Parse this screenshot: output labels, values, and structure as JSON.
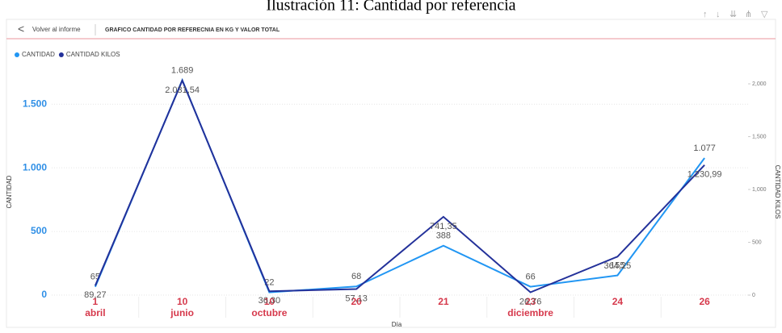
{
  "caption": "Ilustración 11: Cantidad por referencia",
  "header": {
    "back": "Volver al informe",
    "title": "GRAFICO CANTIDAD POR REFERECNIA EN KG Y VALOR TOTAL"
  },
  "chart_data": {
    "type": "line",
    "x_label": "Día",
    "y_label": "CANTIDAD",
    "y2_label": "CANTIDAD KILOS",
    "categories": [
      "1",
      "10",
      "10",
      "20",
      "21",
      "23",
      "24",
      "26"
    ],
    "month_categories": [
      "abril",
      "junio",
      "octubre",
      null,
      null,
      "diciembre",
      null,
      null
    ],
    "ylim": [
      0,
      1780
    ],
    "yticks": [
      0,
      500,
      {
        "value": 1000,
        "label": "1.000"
      },
      {
        "value": 1500,
        "label": "1.500"
      }
    ],
    "y2lim": [
      0,
      2145
    ],
    "y2ticks": [
      0,
      500,
      {
        "value": 1000,
        "label": "1,000"
      },
      {
        "value": 1500,
        "label": "1,500"
      },
      {
        "value": 2000,
        "label": "2,000"
      }
    ],
    "grid": true,
    "legend": "top-left",
    "series": [
      {
        "name": "CANTIDAD",
        "color": "#2196f3",
        "values": [
          65,
          1689,
          22,
          68,
          388,
          66,
          155,
          1077
        ],
        "value_labels": [
          "65",
          "1.689",
          "22",
          "68",
          "388",
          "66",
          "155",
          "1.077"
        ]
      },
      {
        "name": "CANTIDAD KILOS",
        "color": "#23319a",
        "axis": "y2",
        "values": [
          89.27,
          2031.54,
          36.3,
          57.13,
          741.35,
          26.76,
          364.25,
          1230.99
        ],
        "value_labels": [
          "89,27",
          "2.031,54",
          "36,30",
          "57,13",
          "741,35",
          "26,76",
          "364,25",
          "1.230,99"
        ]
      }
    ]
  }
}
